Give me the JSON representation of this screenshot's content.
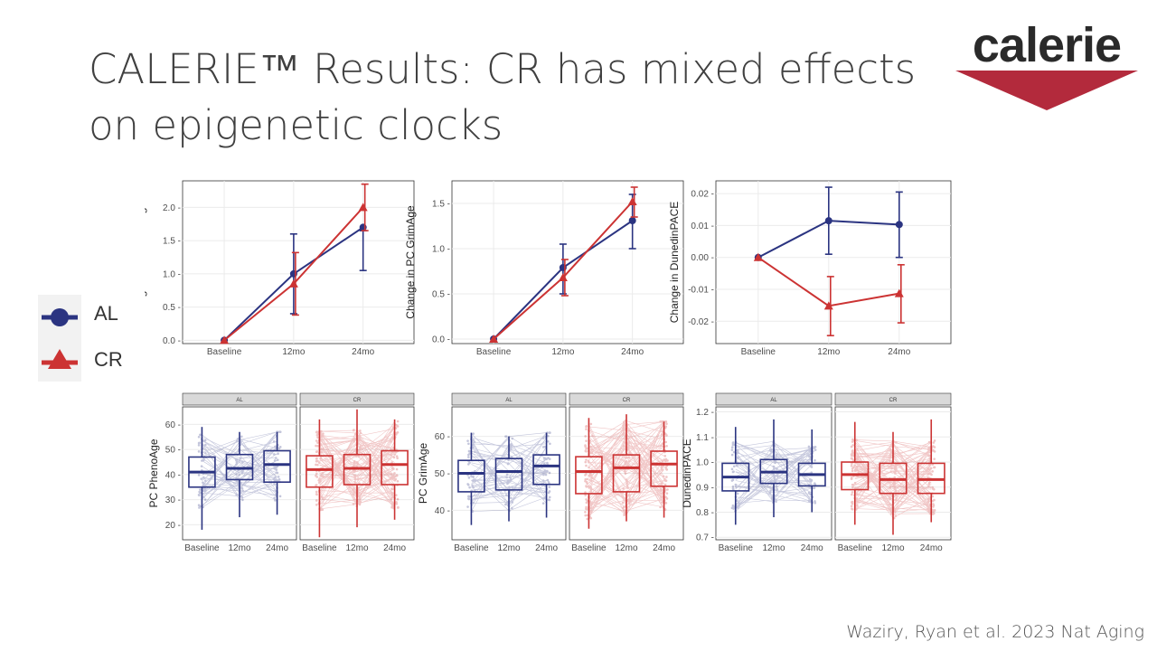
{
  "slide": {
    "title": "CALERIE™ Results: CR has mixed effects on epigenetic clocks",
    "citation": "Waziry, Ryan et al. 2023 Nat Aging",
    "logo_text": "calerie"
  },
  "colors": {
    "al": "#2b3481",
    "cr": "#cc3333",
    "grid": "#ebebeb",
    "strip": "#d9d9d9"
  },
  "legend": {
    "items": [
      {
        "label": "AL",
        "shape": "circle"
      },
      {
        "label": "CR",
        "shape": "triangle"
      }
    ]
  },
  "chart_data": [
    {
      "id": "phenoage-change",
      "type": "line",
      "ylabel": "Change in PC PhenoAge",
      "categories": [
        "Baseline",
        "12mo",
        "24mo"
      ],
      "ylim": [
        -0.05,
        2.4
      ],
      "yticks": [
        0.0,
        0.5,
        1.0,
        1.5,
        2.0
      ],
      "ytick_labels": [
        "0.0 -",
        "0.5 -",
        "1.0 -",
        "1.5 -",
        "2.0 -"
      ],
      "series": [
        {
          "name": "AL",
          "values": [
            0,
            1.0,
            1.7
          ],
          "lower": [
            0,
            0.4,
            1.05
          ],
          "upper": [
            0,
            1.6,
            1.65
          ]
        },
        {
          "name": "CR",
          "values": [
            0,
            0.85,
            2.0
          ],
          "lower": [
            0,
            0.38,
            1.65
          ],
          "upper": [
            0,
            1.32,
            2.35
          ]
        }
      ]
    },
    {
      "id": "grimage-change",
      "type": "line",
      "ylabel": "Change in PC GrimAge",
      "categories": [
        "Baseline",
        "12mo",
        "24mo"
      ],
      "ylim": [
        -0.05,
        1.75
      ],
      "yticks": [
        0.0,
        0.5,
        1.0,
        1.5
      ],
      "ytick_labels": [
        "0.0 -",
        "0.5 -",
        "1.0 -",
        "1.5 -"
      ],
      "series": [
        {
          "name": "AL",
          "values": [
            0,
            0.79,
            1.31
          ],
          "lower": [
            0,
            0.5,
            1.0
          ],
          "upper": [
            0,
            1.05,
            1.6
          ]
        },
        {
          "name": "CR",
          "values": [
            0,
            0.68,
            1.52
          ],
          "lower": [
            0,
            0.48,
            1.35
          ],
          "upper": [
            0,
            0.88,
            1.68
          ]
        }
      ]
    },
    {
      "id": "dunedinpace-change",
      "type": "line",
      "ylabel": "Change in DunedinPACE",
      "categories": [
        "Baseline",
        "12mo",
        "24mo"
      ],
      "ylim": [
        -0.027,
        0.024
      ],
      "yticks": [
        -0.02,
        -0.01,
        0.0,
        0.01,
        0.02
      ],
      "ytick_labels": [
        "-0.02 -",
        "-0.01 -",
        "0.00 -",
        "0.01 -",
        "0.02 -"
      ],
      "series": [
        {
          "name": "AL",
          "values": [
            0,
            0.0115,
            0.0103
          ],
          "lower": [
            0,
            0.001,
            0.0
          ],
          "upper": [
            0,
            0.022,
            0.0205
          ]
        },
        {
          "name": "CR",
          "values": [
            0,
            -0.0152,
            -0.0113
          ],
          "lower": [
            0,
            -0.0245,
            -0.0205
          ],
          "upper": [
            0,
            -0.006,
            -0.0023
          ]
        }
      ]
    },
    {
      "id": "phenoage-box",
      "type": "box",
      "ylabel": "PC PhenoAge",
      "categories": [
        "Baseline",
        "12mo",
        "24mo"
      ],
      "ylim": [
        14,
        67
      ],
      "yticks": [
        20,
        30,
        40,
        50,
        60
      ],
      "ytick_labels": [
        "20 -",
        "30 -",
        "40 -",
        "50 -",
        "60 -"
      ],
      "panels": [
        {
          "label": "AL",
          "boxes": [
            [
              18,
              35,
              41,
              47,
              59
            ],
            [
              23,
              38,
              42.5,
              48,
              57
            ],
            [
              24,
              37,
              44,
              49.5,
              57
            ]
          ]
        },
        {
          "label": "CR",
          "boxes": [
            [
              15,
              35,
              42,
              47.5,
              62
            ],
            [
              19,
              36,
              42.5,
              48,
              66
            ],
            [
              22,
              36,
              44,
              49.5,
              62
            ]
          ]
        }
      ]
    },
    {
      "id": "grimage-box",
      "type": "box",
      "ylabel": "PC GrimAge",
      "categories": [
        "Baseline",
        "12mo",
        "24mo"
      ],
      "ylim": [
        32,
        68
      ],
      "yticks": [
        40,
        50,
        60
      ],
      "ytick_labels": [
        "40 -",
        "50 -",
        "60 -"
      ],
      "panels": [
        {
          "label": "AL",
          "boxes": [
            [
              36,
              45,
              50,
              53.5,
              61
            ],
            [
              37,
              45.5,
              50.5,
              54,
              60
            ],
            [
              38,
              47,
              52,
              55,
              61
            ]
          ]
        },
        {
          "label": "CR",
          "boxes": [
            [
              35,
              44.5,
              50.5,
              54.5,
              65
            ],
            [
              37,
              45,
              51.5,
              55,
              66
            ],
            [
              38,
              46.5,
              52.5,
              56,
              64
            ]
          ]
        }
      ]
    },
    {
      "id": "dunedinpace-box",
      "type": "box",
      "ylabel": "DunedinPACE",
      "categories": [
        "Baseline",
        "12mo",
        "24mo"
      ],
      "ylim": [
        0.69,
        1.22
      ],
      "yticks": [
        0.7,
        0.8,
        0.9,
        1.0,
        1.1,
        1.2
      ],
      "ytick_labels": [
        "0.7 -",
        "0.8 -",
        "0.9 -",
        "1.0 -",
        "1.1 -",
        "1.2 -"
      ],
      "panels": [
        {
          "label": "AL",
          "boxes": [
            [
              0.75,
              0.885,
              0.94,
              0.995,
              1.14
            ],
            [
              0.78,
              0.915,
              0.96,
              1.01,
              1.17
            ],
            [
              0.8,
              0.905,
              0.95,
              0.995,
              1.13
            ]
          ]
        },
        {
          "label": "CR",
          "boxes": [
            [
              0.75,
              0.89,
              0.95,
              1.0,
              1.16
            ],
            [
              0.71,
              0.875,
              0.93,
              0.995,
              1.12
            ],
            [
              0.76,
              0.875,
              0.93,
              0.995,
              1.17
            ]
          ]
        }
      ]
    }
  ]
}
